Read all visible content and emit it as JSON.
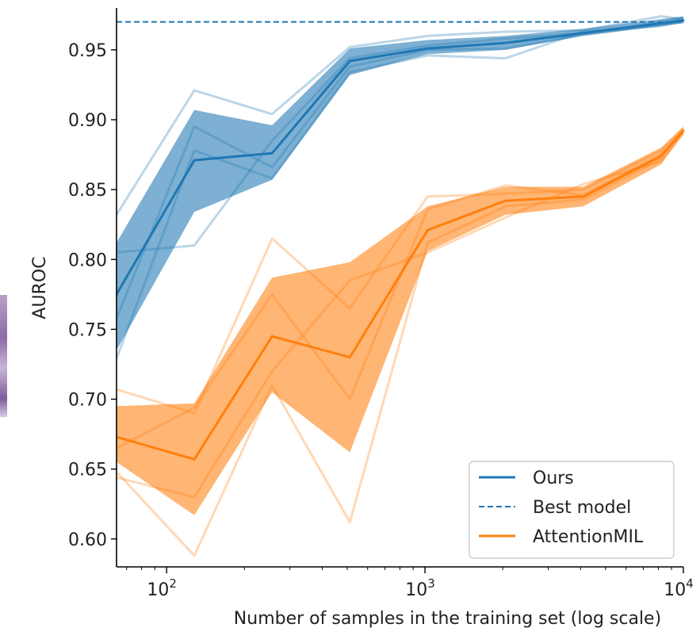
{
  "chart_data": {
    "type": "line",
    "title": "",
    "xlabel": "Number of samples in the training set (log scale)",
    "ylabel": "AUROC",
    "xscale": "log",
    "xlim": [
      64,
      10000
    ],
    "ylim": [
      0.58,
      0.98
    ],
    "x_ticks": [
      {
        "value": 100,
        "base": "10",
        "exp": "2"
      },
      {
        "value": 1000,
        "base": "10",
        "exp": "3"
      },
      {
        "value": 10000,
        "base": "10",
        "exp": "4"
      }
    ],
    "y_ticks": [
      {
        "value": 0.6,
        "label": "0.60"
      },
      {
        "value": 0.65,
        "label": "0.65"
      },
      {
        "value": 0.7,
        "label": "0.70"
      },
      {
        "value": 0.75,
        "label": "0.75"
      },
      {
        "value": 0.8,
        "label": "0.80"
      },
      {
        "value": 0.85,
        "label": "0.85"
      },
      {
        "value": 0.9,
        "label": "0.90"
      },
      {
        "value": 0.95,
        "label": "0.95"
      }
    ],
    "x": [
      64,
      128,
      256,
      512,
      1024,
      2048,
      4096,
      8192,
      10000
    ],
    "series": [
      {
        "name": "Ours",
        "color": "#1f77b4",
        "mean": [
          0.775,
          0.871,
          0.876,
          0.942,
          0.951,
          0.955,
          0.962,
          0.969,
          0.971
        ],
        "lower": [
          0.735,
          0.834,
          0.857,
          0.932,
          0.947,
          0.95,
          0.96,
          0.967,
          0.969
        ],
        "upper": [
          0.812,
          0.907,
          0.896,
          0.951,
          0.957,
          0.96,
          0.965,
          0.972,
          0.974
        ],
        "runs": [
          [
            0.832,
            0.921,
            0.904,
            0.952,
            0.96,
            0.963,
            0.964,
            0.974,
            0.972
          ],
          [
            0.805,
            0.81,
            0.885,
            0.944,
            0.953,
            0.958,
            0.962,
            0.97,
            0.973
          ],
          [
            0.758,
            0.895,
            0.866,
            0.938,
            0.95,
            0.951,
            0.961,
            0.968,
            0.97
          ],
          [
            0.729,
            0.878,
            0.858,
            0.934,
            0.946,
            0.944,
            0.963,
            0.967,
            0.971
          ]
        ]
      },
      {
        "name": "AttentionMIL",
        "color": "#ff7f0e",
        "mean": [
          0.673,
          0.657,
          0.745,
          0.73,
          0.821,
          0.842,
          0.845,
          0.874,
          0.892
        ],
        "lower": [
          0.655,
          0.617,
          0.705,
          0.662,
          0.806,
          0.832,
          0.838,
          0.868,
          0.89
        ],
        "upper": [
          0.695,
          0.697,
          0.787,
          0.798,
          0.838,
          0.852,
          0.852,
          0.88,
          0.895
        ],
        "runs": [
          [
            0.707,
            0.69,
            0.815,
            0.765,
            0.845,
            0.847,
            0.85,
            0.878,
            0.893
          ],
          [
            0.665,
            0.694,
            0.775,
            0.7,
            0.836,
            0.853,
            0.846,
            0.875,
            0.891
          ],
          [
            0.648,
            0.588,
            0.71,
            0.612,
            0.812,
            0.838,
            0.843,
            0.872,
            0.894
          ],
          [
            0.644,
            0.63,
            0.72,
            0.785,
            0.805,
            0.83,
            0.854,
            0.87,
            0.89
          ]
        ]
      }
    ],
    "reference_lines": [
      {
        "name": "Best model",
        "value": 0.97,
        "color": "#1f77b4",
        "style": "dashed"
      }
    ],
    "legend": {
      "position": "bottom-right",
      "entries": [
        {
          "label": "Ours",
          "color": "#1f77b4",
          "style": "solid"
        },
        {
          "label": "Best model",
          "color": "#1f77b4",
          "style": "dashed"
        },
        {
          "label": "AttentionMIL",
          "color": "#ff7f0e",
          "style": "solid"
        }
      ]
    }
  }
}
